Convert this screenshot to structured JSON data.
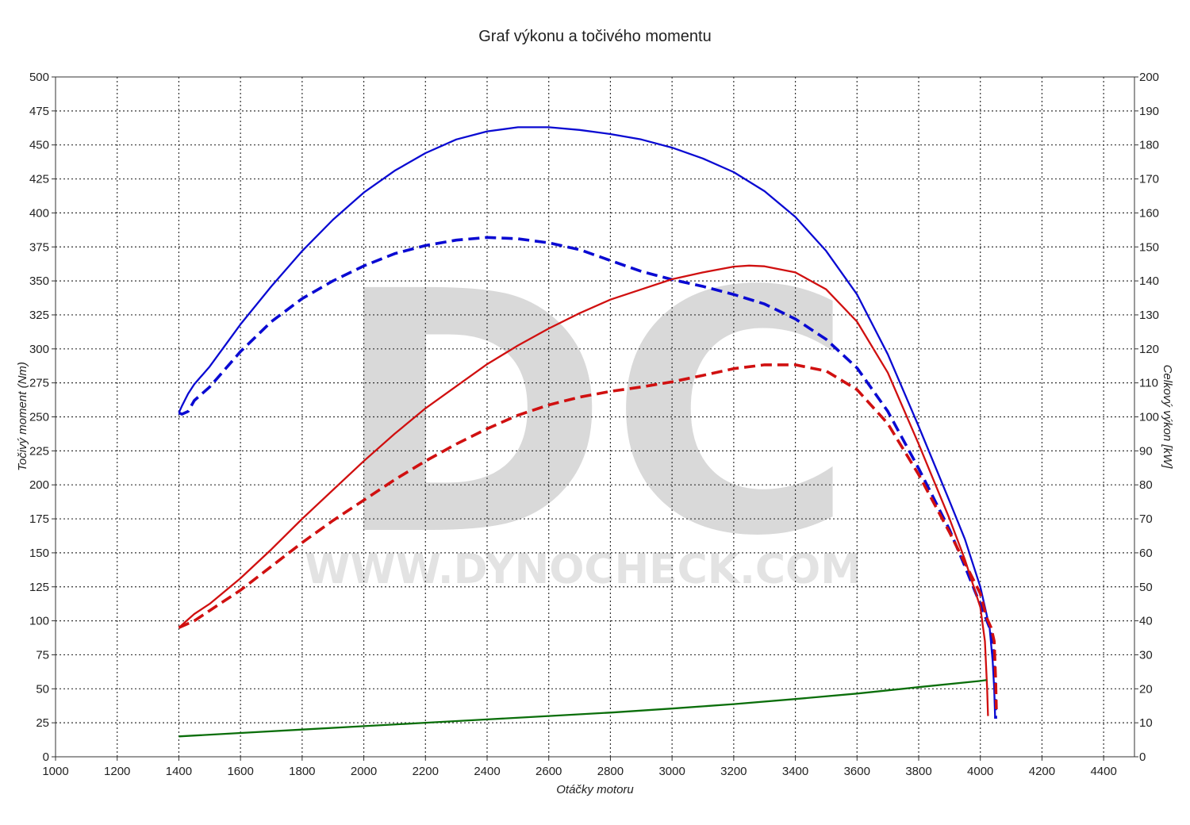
{
  "chart_data": {
    "type": "line",
    "title": "Graf výkonu a točivého momentu",
    "xlabel": "Otáčky motoru",
    "ylabel_left": "Točivý moment (Nm)",
    "ylabel_right": "Celkový výkon [kW]",
    "watermark_main": "DC",
    "watermark_sub": "WWW.DYNOCHECK.COM",
    "xlim": [
      1000,
      4500
    ],
    "ylim_left": [
      0,
      500
    ],
    "ylim_right": [
      0,
      200
    ],
    "xticks": [
      1000,
      1200,
      1400,
      1600,
      1800,
      2000,
      2200,
      2400,
      2600,
      2800,
      3000,
      3200,
      3400,
      3600,
      3800,
      4000,
      4200,
      4400
    ],
    "yticks_left": [
      0,
      25,
      50,
      75,
      100,
      125,
      150,
      175,
      200,
      225,
      250,
      275,
      300,
      325,
      350,
      375,
      400,
      425,
      450,
      475,
      500
    ],
    "yticks_right": [
      0,
      10,
      20,
      30,
      40,
      50,
      60,
      70,
      80,
      90,
      100,
      110,
      120,
      130,
      140,
      150,
      160,
      170,
      180,
      190,
      200
    ],
    "grid": true,
    "colors": {
      "torque": "#0a0ad2",
      "power": "#d01010",
      "loss": "#0a6e0a",
      "grid": "#333333",
      "watermark": "#d9d9d9"
    },
    "series": [
      {
        "axis": "left",
        "color": "#0a0ad2",
        "dashed": false,
        "points": [
          [
            1400,
            253
          ],
          [
            1410,
            258
          ],
          [
            1430,
            267
          ],
          [
            1450,
            274
          ],
          [
            1500,
            287
          ],
          [
            1600,
            318
          ],
          [
            1700,
            346
          ],
          [
            1800,
            372
          ],
          [
            1900,
            395
          ],
          [
            2000,
            415
          ],
          [
            2100,
            431
          ],
          [
            2200,
            444
          ],
          [
            2300,
            454
          ],
          [
            2400,
            460
          ],
          [
            2500,
            463
          ],
          [
            2600,
            463
          ],
          [
            2700,
            461
          ],
          [
            2800,
            458
          ],
          [
            2900,
            454
          ],
          [
            3000,
            448
          ],
          [
            3100,
            440
          ],
          [
            3200,
            430
          ],
          [
            3300,
            416
          ],
          [
            3400,
            397
          ],
          [
            3500,
            372
          ],
          [
            3600,
            340
          ],
          [
            3700,
            296
          ],
          [
            3800,
            243
          ],
          [
            3900,
            188
          ],
          [
            3950,
            160
          ],
          [
            4000,
            125
          ],
          [
            4030,
            95
          ],
          [
            4040,
            70
          ],
          [
            4045,
            50
          ],
          [
            4048,
            28
          ]
        ]
      },
      {
        "axis": "left",
        "color": "#0a0ad2",
        "dashed": true,
        "points": [
          [
            1400,
            253
          ],
          [
            1410,
            252
          ],
          [
            1430,
            254
          ],
          [
            1450,
            262
          ],
          [
            1500,
            272
          ],
          [
            1600,
            298
          ],
          [
            1700,
            320
          ],
          [
            1800,
            337
          ],
          [
            1900,
            350
          ],
          [
            2000,
            361
          ],
          [
            2100,
            370
          ],
          [
            2200,
            376
          ],
          [
            2300,
            380
          ],
          [
            2400,
            382
          ],
          [
            2500,
            381
          ],
          [
            2600,
            378
          ],
          [
            2700,
            373
          ],
          [
            2800,
            365
          ],
          [
            2900,
            357
          ],
          [
            3000,
            351
          ],
          [
            3100,
            346
          ],
          [
            3200,
            340
          ],
          [
            3300,
            333
          ],
          [
            3400,
            322
          ],
          [
            3500,
            307
          ],
          [
            3600,
            286
          ],
          [
            3700,
            254
          ],
          [
            3800,
            212
          ],
          [
            3900,
            167
          ],
          [
            3950,
            140
          ],
          [
            4000,
            112
          ],
          [
            4030,
            95
          ],
          [
            4040,
            85
          ],
          [
            4048,
            55
          ],
          [
            4050,
            28
          ]
        ]
      },
      {
        "axis": "right",
        "color": "#d01010",
        "dashed": false,
        "points": [
          [
            1400,
            38
          ],
          [
            1450,
            42
          ],
          [
            1500,
            45
          ],
          [
            1600,
            52.5
          ],
          [
            1700,
            61
          ],
          [
            1800,
            70
          ],
          [
            1900,
            78.5
          ],
          [
            2000,
            87
          ],
          [
            2100,
            95
          ],
          [
            2200,
            102.5
          ],
          [
            2300,
            109
          ],
          [
            2400,
            115.5
          ],
          [
            2500,
            121
          ],
          [
            2600,
            126
          ],
          [
            2700,
            130.5
          ],
          [
            2800,
            134.5
          ],
          [
            2900,
            137.5
          ],
          [
            3000,
            140.5
          ],
          [
            3100,
            142.5
          ],
          [
            3200,
            144.2
          ],
          [
            3250,
            144.5
          ],
          [
            3300,
            144.3
          ],
          [
            3400,
            142.5
          ],
          [
            3500,
            137.5
          ],
          [
            3600,
            128
          ],
          [
            3700,
            113
          ],
          [
            3800,
            92
          ],
          [
            3900,
            70
          ],
          [
            3950,
            58
          ],
          [
            4000,
            44
          ],
          [
            4015,
            34
          ],
          [
            4022,
            20
          ],
          [
            4025,
            12
          ]
        ]
      },
      {
        "axis": "right",
        "color": "#d01010",
        "dashed": true,
        "points": [
          [
            1400,
            38
          ],
          [
            1450,
            40
          ],
          [
            1500,
            43
          ],
          [
            1600,
            49
          ],
          [
            1700,
            56
          ],
          [
            1800,
            63
          ],
          [
            1900,
            69.5
          ],
          [
            2000,
            75.5
          ],
          [
            2100,
            81.5
          ],
          [
            2200,
            87
          ],
          [
            2300,
            92
          ],
          [
            2400,
            96.5
          ],
          [
            2500,
            100.5
          ],
          [
            2600,
            103.5
          ],
          [
            2700,
            105.8
          ],
          [
            2800,
            107.5
          ],
          [
            2900,
            108.8
          ],
          [
            3000,
            110.3
          ],
          [
            3100,
            112.2
          ],
          [
            3200,
            114.2
          ],
          [
            3300,
            115.3
          ],
          [
            3400,
            115.3
          ],
          [
            3500,
            113.5
          ],
          [
            3600,
            108
          ],
          [
            3700,
            98
          ],
          [
            3800,
            83
          ],
          [
            3900,
            66
          ],
          [
            4000,
            48
          ],
          [
            4020,
            41
          ],
          [
            4035,
            38
          ],
          [
            4045,
            34
          ],
          [
            4050,
            22
          ],
          [
            4052,
            14
          ]
        ]
      },
      {
        "axis": "right",
        "color": "#0a6e0a",
        "dashed": false,
        "points": [
          [
            1400,
            6
          ],
          [
            1600,
            7
          ],
          [
            1800,
            8
          ],
          [
            2000,
            9
          ],
          [
            2200,
            10
          ],
          [
            2400,
            11
          ],
          [
            2600,
            12
          ],
          [
            2800,
            13
          ],
          [
            3000,
            14.2
          ],
          [
            3200,
            15.5
          ],
          [
            3400,
            17
          ],
          [
            3600,
            18.6
          ],
          [
            3800,
            20.5
          ],
          [
            4000,
            22.3
          ],
          [
            4020,
            22.6
          ]
        ]
      }
    ]
  }
}
